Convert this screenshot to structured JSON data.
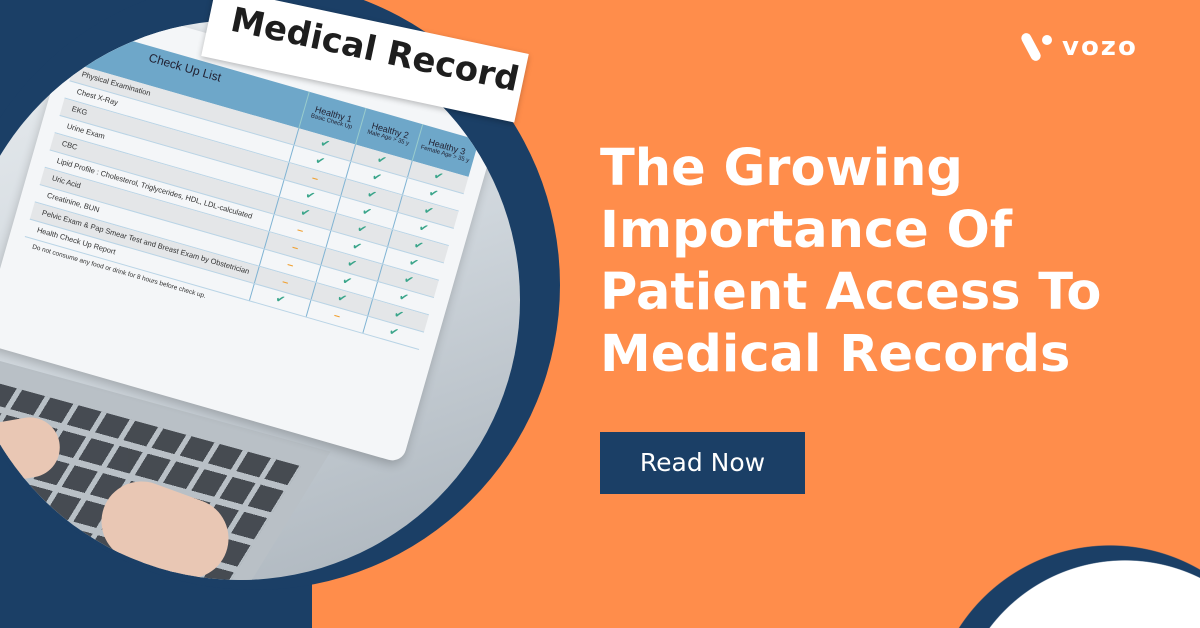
{
  "colors": {
    "brand_orange": "#FF8D4B",
    "navy": "#1B3F66",
    "white": "#FFFFFF"
  },
  "brand": {
    "name": "VOZO",
    "logo_text": "vozo",
    "icon": "vozo-v-logo-icon"
  },
  "headline": {
    "lines": [
      "The Growing",
      "Importance Of",
      "Patient Access To",
      "Medical Records"
    ]
  },
  "cta": {
    "label": "Read Now"
  },
  "image": {
    "tag_title": "Medical Record",
    "table": {
      "title": "Check Up List",
      "columns": [
        {
          "name": "Healthy 1",
          "sub": "Basic Check Up"
        },
        {
          "name": "Healthy 2",
          "sub": "Male Age > 35 y"
        },
        {
          "name": "Healthy 3",
          "sub": "Female Age > 35 y"
        }
      ],
      "rows": [
        {
          "label": "Physical Examination",
          "marks": [
            "✔",
            "✔",
            "✔"
          ]
        },
        {
          "label": "Chest X-Ray",
          "marks": [
            "✔",
            "✔",
            "✔"
          ]
        },
        {
          "label": "EKG",
          "marks": [
            "–",
            "✔",
            "✔"
          ]
        },
        {
          "label": "Urine Exam",
          "marks": [
            "✔",
            "✔",
            "✔"
          ]
        },
        {
          "label": "CBC",
          "marks": [
            "✔",
            "✔",
            "✔"
          ]
        },
        {
          "label": "Lipid Profile :   Cholesterol, Triglycerides, HDL, LDL-calculated",
          "marks": [
            "–",
            "✔",
            "✔"
          ]
        },
        {
          "label": "Uric Acid",
          "marks": [
            "–",
            "✔",
            "✔"
          ]
        },
        {
          "label": "Creatinine, BUN",
          "marks": [
            "–",
            "✔",
            "✔"
          ]
        },
        {
          "label": "Pelvic Exam & Pap Smear Test and Breast Exam by Obstetrician",
          "marks": [
            "–",
            "✔",
            "✔"
          ]
        },
        {
          "label": "Health Check Up Report",
          "marks": [
            "✔",
            "–",
            "✔"
          ]
        }
      ],
      "footnote": "Do not consume any food or drink for 8 hours before check up."
    }
  }
}
